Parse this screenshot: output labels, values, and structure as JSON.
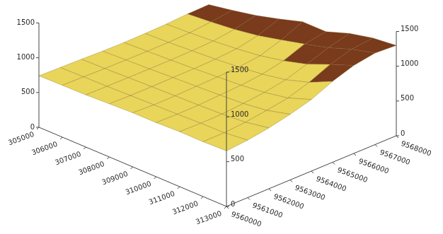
{
  "chart_data": {
    "type": "surface",
    "x": [
      305000,
      306000,
      307000,
      308000,
      309000,
      310000,
      311000,
      312000,
      313000
    ],
    "y": [
      9560000,
      9561000,
      9562000,
      9563000,
      9564000,
      9565000,
      9566000,
      9567000,
      9568000
    ],
    "z": [
      [
        740,
        720,
        700,
        690,
        680,
        660,
        650,
        630,
        620
      ],
      [
        760,
        740,
        720,
        705,
        690,
        675,
        665,
        650,
        660
      ],
      [
        780,
        760,
        745,
        730,
        715,
        700,
        690,
        690,
        720
      ],
      [
        800,
        785,
        770,
        760,
        750,
        740,
        735,
        750,
        800
      ],
      [
        830,
        815,
        800,
        790,
        785,
        780,
        790,
        820,
        900
      ],
      [
        870,
        850,
        840,
        830,
        830,
        840,
        870,
        940,
        1050
      ],
      [
        920,
        900,
        890,
        890,
        900,
        940,
        1000,
        1100,
        1180
      ],
      [
        990,
        980,
        980,
        1000,
        1050,
        1100,
        1150,
        1230,
        1270
      ],
      [
        1050,
        1080,
        1120,
        1180,
        1250,
        1200,
        1280,
        1310,
        1300
      ]
    ],
    "xlim": [
      305000,
      313000
    ],
    "xticks": [
      305000,
      306000,
      307000,
      308000,
      309000,
      310000,
      311000,
      312000,
      313000
    ],
    "ylim": [
      9560000,
      9568000
    ],
    "yticks": [
      9560000,
      9561000,
      9562000,
      9563000,
      9564000,
      9565000,
      9566000,
      9567000,
      9568000
    ],
    "zlim": [
      0,
      1500
    ],
    "zticks": [
      0,
      500,
      1000,
      1500
    ],
    "colorscale": [
      {
        "value": 0,
        "color": "#e9d55a"
      },
      {
        "value": 1000,
        "color": "#7a3a1c"
      }
    ],
    "grid": false
  }
}
